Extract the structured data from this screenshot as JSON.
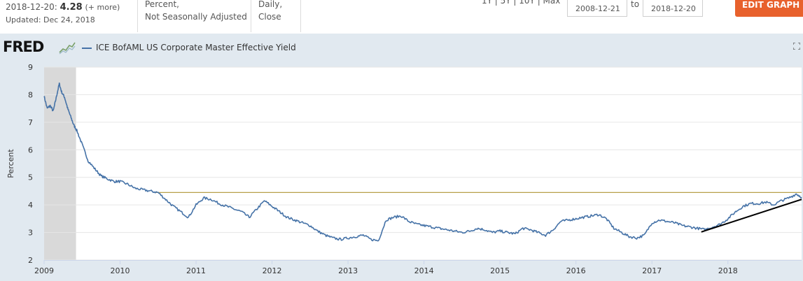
{
  "header": {
    "obs_date": "2018-12-20:",
    "obs_value": "4.28",
    "obs_more": "(+ more)",
    "updated": "Updated: Dec 24, 2018",
    "units_line1": "Percent,",
    "units_line2": "Not Seasonally Adjusted",
    "freq_line1": "Daily,",
    "freq_line2": "Close",
    "ranges": "1Y | 5Y | 10Y | Max",
    "date_from": "2008-12-21",
    "to_label": "to",
    "date_to": "2018-12-20",
    "edit_graph": "EDIT GRAPH"
  },
  "logo": {
    "text": "FRED"
  },
  "icons": {
    "logo_graph": "line-graph-icon",
    "fullscreen": "fullscreen-icon",
    "edit": "gear-icon"
  },
  "colors": {
    "series": "#4572a7",
    "reference": "#b8a04a",
    "trend": "#000000",
    "recession": "#d9d9d9",
    "panel": "#e1e9f0",
    "button": "#e8612c"
  },
  "chart_data": {
    "type": "line",
    "ylabel": "Percent",
    "xlim": [
      2009.0,
      2018.97
    ],
    "ylim": [
      2,
      9
    ],
    "yticks": [
      2,
      3,
      4,
      5,
      6,
      7,
      8,
      9
    ],
    "xticks": [
      2009,
      2010,
      2011,
      2012,
      2013,
      2014,
      2015,
      2016,
      2017,
      2018
    ],
    "grid": "horizontal",
    "legend": "top-left",
    "recession_band": [
      2009.0,
      2009.42
    ],
    "reference_line": {
      "y": 4.45
    },
    "trend_line": {
      "start": [
        2017.65,
        3.02
      ],
      "end": [
        2018.97,
        4.2
      ]
    },
    "series": [
      {
        "name": "ICE BofAML US Corporate Master Effective Yield",
        "x": [
          2009.0,
          2009.04,
          2009.08,
          2009.12,
          2009.16,
          2009.2,
          2009.23,
          2009.27,
          2009.31,
          2009.35,
          2009.39,
          2009.43,
          2009.5,
          2009.58,
          2009.67,
          2009.75,
          2009.83,
          2009.92,
          2010.0,
          2010.1,
          2010.2,
          2010.3,
          2010.4,
          2010.5,
          2010.6,
          2010.7,
          2010.8,
          2010.9,
          2011.0,
          2011.1,
          2011.2,
          2011.3,
          2011.4,
          2011.5,
          2011.6,
          2011.7,
          2011.8,
          2011.9,
          2012.0,
          2012.1,
          2012.2,
          2012.3,
          2012.4,
          2012.5,
          2012.6,
          2012.7,
          2012.8,
          2012.9,
          2013.0,
          2013.1,
          2013.2,
          2013.3,
          2013.4,
          2013.5,
          2013.6,
          2013.7,
          2013.8,
          2013.9,
          2014.0,
          2014.1,
          2014.2,
          2014.3,
          2014.4,
          2014.5,
          2014.6,
          2014.7,
          2014.8,
          2014.9,
          2015.0,
          2015.1,
          2015.2,
          2015.3,
          2015.4,
          2015.5,
          2015.6,
          2015.7,
          2015.8,
          2015.9,
          2016.0,
          2016.1,
          2016.2,
          2016.3,
          2016.4,
          2016.5,
          2016.6,
          2016.7,
          2016.8,
          2016.9,
          2017.0,
          2017.1,
          2017.2,
          2017.3,
          2017.4,
          2017.5,
          2017.6,
          2017.7,
          2017.8,
          2017.9,
          2018.0,
          2018.1,
          2018.2,
          2018.3,
          2018.4,
          2018.5,
          2018.6,
          2018.7,
          2018.8,
          2018.9,
          2018.97
        ],
        "y": [
          7.95,
          7.5,
          7.6,
          7.4,
          7.9,
          8.4,
          8.1,
          7.9,
          7.5,
          7.2,
          6.9,
          6.7,
          6.2,
          5.6,
          5.3,
          5.05,
          4.95,
          4.85,
          4.85,
          4.75,
          4.6,
          4.55,
          4.5,
          4.45,
          4.2,
          3.95,
          3.75,
          3.55,
          4.0,
          4.25,
          4.2,
          4.05,
          3.95,
          3.85,
          3.75,
          3.55,
          3.85,
          4.15,
          3.95,
          3.75,
          3.55,
          3.45,
          3.35,
          3.25,
          3.05,
          2.9,
          2.8,
          2.75,
          2.8,
          2.85,
          2.9,
          2.75,
          2.7,
          3.45,
          3.55,
          3.6,
          3.4,
          3.3,
          3.25,
          3.2,
          3.15,
          3.1,
          3.05,
          3.0,
          3.05,
          3.15,
          3.1,
          3.0,
          3.05,
          3.0,
          2.95,
          3.15,
          3.1,
          3.0,
          2.9,
          3.1,
          3.4,
          3.45,
          3.5,
          3.55,
          3.6,
          3.65,
          3.5,
          3.15,
          3.0,
          2.85,
          2.8,
          2.9,
          3.35,
          3.45,
          3.4,
          3.35,
          3.25,
          3.2,
          3.15,
          3.1,
          3.2,
          3.3,
          3.5,
          3.75,
          3.95,
          4.05,
          4.05,
          4.1,
          4.0,
          4.15,
          4.25,
          4.4,
          4.28
        ]
      }
    ]
  }
}
